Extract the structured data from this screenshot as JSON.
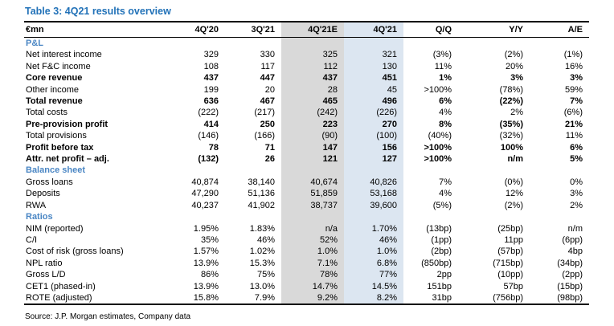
{
  "title": "Table 3: 4Q21 results overview",
  "source": "Source: J.P. Morgan estimates, Company data",
  "colors": {
    "title_blue": "#2272B8",
    "section_blue": "#4A86C4",
    "estimate_col_gray": "#D9D9D9",
    "actual_col_blue": "#DCE6F1",
    "rule_black": "#000000"
  },
  "table": {
    "columns": [
      "€mn",
      "4Q'20",
      "3Q'21",
      "4Q'21E",
      "4Q'21",
      "Q/Q",
      "Y/Y",
      "A/E"
    ],
    "highlight": {
      "gray_column": "4Q'21E",
      "blue_column": "4Q'21"
    },
    "sections": [
      {
        "name": "P&L",
        "rows": [
          {
            "label": "Net interest income",
            "bold": false,
            "values": [
              "329",
              "330",
              "325",
              "321",
              "(3%)",
              "(2%)",
              "(1%)"
            ]
          },
          {
            "label": "Net F&C income",
            "bold": false,
            "values": [
              "108",
              "117",
              "112",
              "130",
              "11%",
              "20%",
              "16%"
            ]
          },
          {
            "label": "Core revenue",
            "bold": true,
            "values": [
              "437",
              "447",
              "437",
              "451",
              "1%",
              "3%",
              "3%"
            ]
          },
          {
            "label": "Other income",
            "bold": false,
            "values": [
              "199",
              "20",
              "28",
              "45",
              ">100%",
              "(78%)",
              "59%"
            ]
          },
          {
            "label": "Total revenue",
            "bold": true,
            "values": [
              "636",
              "467",
              "465",
              "496",
              "6%",
              "(22%)",
              "7%"
            ]
          },
          {
            "label": "Total costs",
            "bold": false,
            "values": [
              "(222)",
              "(217)",
              "(242)",
              "(226)",
              "4%",
              "2%",
              "(6%)"
            ]
          },
          {
            "label": "Pre-provision profit",
            "bold": true,
            "values": [
              "414",
              "250",
              "223",
              "270",
              "8%",
              "(35%)",
              "21%"
            ]
          },
          {
            "label": "Total provisions",
            "bold": false,
            "values": [
              "(146)",
              "(166)",
              "(90)",
              "(100)",
              "(40%)",
              "(32%)",
              "11%"
            ]
          },
          {
            "label": "Profit before tax",
            "bold": true,
            "values": [
              "78",
              "71",
              "147",
              "156",
              ">100%",
              "100%",
              "6%"
            ]
          },
          {
            "label": "Attr. net profit – adj.",
            "bold": true,
            "values": [
              "(132)",
              "26",
              "121",
              "127",
              ">100%",
              "n/m",
              "5%"
            ]
          }
        ]
      },
      {
        "name": "Balance sheet",
        "rows": [
          {
            "label": "Gross loans",
            "bold": false,
            "values": [
              "40,874",
              "38,140",
              "40,674",
              "40,826",
              "7%",
              "(0%)",
              "0%"
            ]
          },
          {
            "label": "Deposits",
            "bold": false,
            "values": [
              "47,290",
              "51,136",
              "51,859",
              "53,168",
              "4%",
              "12%",
              "3%"
            ]
          },
          {
            "label": "RWA",
            "bold": false,
            "values": [
              "40,237",
              "41,902",
              "38,737",
              "39,600",
              "(5%)",
              "(2%)",
              "2%"
            ]
          }
        ]
      },
      {
        "name": "Ratios",
        "rows": [
          {
            "label": "NIM (reported)",
            "bold": false,
            "values": [
              "1.95%",
              "1.83%",
              "n/a",
              "1.70%",
              "(13bp)",
              "(25bp)",
              "n/m"
            ]
          },
          {
            "label": "C/I",
            "bold": false,
            "values": [
              "35%",
              "46%",
              "52%",
              "46%",
              "(1pp)",
              "11pp",
              "(6pp)"
            ]
          },
          {
            "label": "Cost of risk (gross loans)",
            "bold": false,
            "values": [
              "1.57%",
              "1.02%",
              "1.0%",
              "1.0%",
              "(2bp)",
              "(57bp)",
              "4bp"
            ]
          },
          {
            "label": "NPL ratio",
            "bold": false,
            "values": [
              "13.9%",
              "15.3%",
              "7.1%",
              "6.8%",
              "(850bp)",
              "(715bp)",
              "(34bp)"
            ]
          },
          {
            "label": "Gross L/D",
            "bold": false,
            "values": [
              "86%",
              "75%",
              "78%",
              "77%",
              "2pp",
              "(10pp)",
              "(2pp)"
            ]
          },
          {
            "label": "CET1 (phased-in)",
            "bold": false,
            "values": [
              "13.9%",
              "13.0%",
              "14.7%",
              "14.5%",
              "151bp",
              "57bp",
              "(15bp)"
            ]
          },
          {
            "label": "ROTE (adjusted)",
            "bold": false,
            "values": [
              "15.8%",
              "7.9%",
              "9.2%",
              "8.2%",
              "31bp",
              "(756bp)",
              "(98bp)"
            ]
          }
        ]
      }
    ]
  }
}
